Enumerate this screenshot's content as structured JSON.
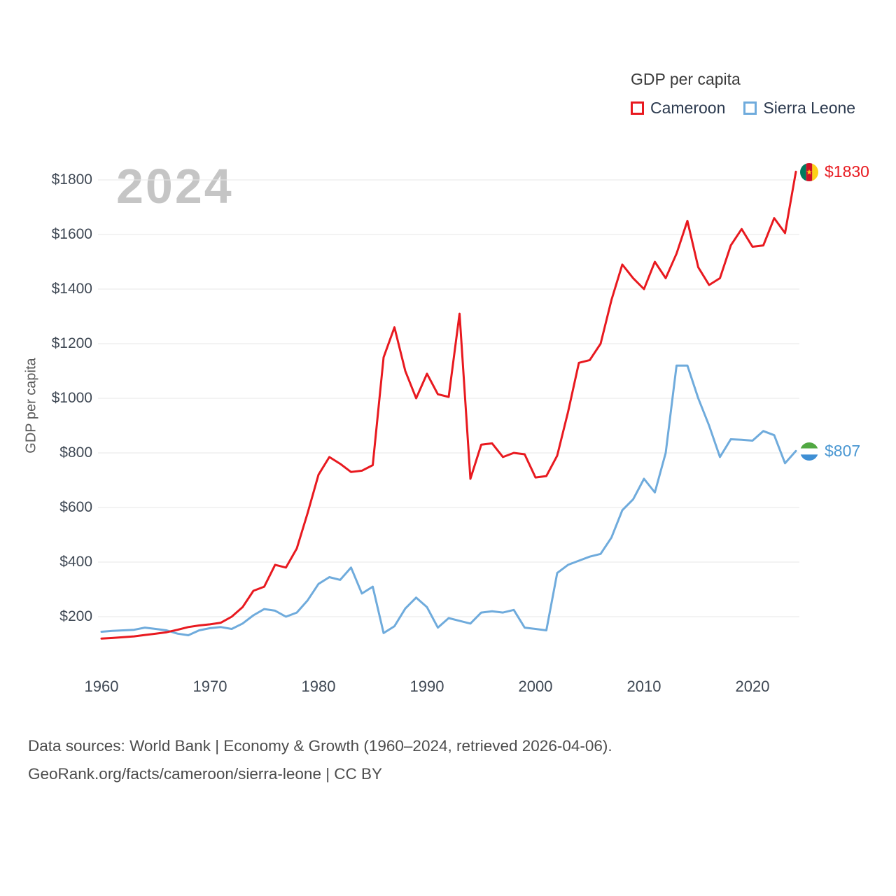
{
  "watermark": "2024",
  "y_axis_title": "GDP per capita",
  "legend": {
    "title": "GDP per capita",
    "items": [
      {
        "label": "Cameroon",
        "color": "#e8191f"
      },
      {
        "label": "Sierra Leone",
        "color": "#6fabdc"
      }
    ]
  },
  "end_labels": [
    {
      "series": "Cameroon",
      "value": "$1830",
      "color": "#e8191f",
      "flag": "cameroon-flag"
    },
    {
      "series": "Sierra Leone",
      "value": "$807",
      "color": "#4a97d2",
      "flag": "sierra-leone-flag"
    }
  ],
  "footer": {
    "line1": "Data sources: World Bank | Economy & Growth (1960–2024, retrieved 2026-04-06).",
    "line2": "GeoRank.org/facts/cameroon/sierra-leone | CC BY"
  },
  "chart_data": {
    "type": "line",
    "title": "GDP per capita",
    "xlabel": "",
    "ylabel": "GDP per capita",
    "x_range": [
      1960,
      2024
    ],
    "x_frequency": "annual",
    "ylim": [
      100,
      1900
    ],
    "grid": true,
    "legend_position": "top-right",
    "x_ticks": [
      {
        "v": 1960,
        "label": "1960"
      },
      {
        "v": 1970,
        "label": "1970"
      },
      {
        "v": 1980,
        "label": "1980"
      },
      {
        "v": 1990,
        "label": "1990"
      },
      {
        "v": 2000,
        "label": "2000"
      },
      {
        "v": 2010,
        "label": "2010"
      },
      {
        "v": 2020,
        "label": "2020"
      }
    ],
    "y_ticks": [
      {
        "v": 200,
        "label": "$200"
      },
      {
        "v": 400,
        "label": "$400"
      },
      {
        "v": 600,
        "label": "$600"
      },
      {
        "v": 800,
        "label": "$800"
      },
      {
        "v": 1000,
        "label": "$1000"
      },
      {
        "v": 1200,
        "label": "$1200"
      },
      {
        "v": 1400,
        "label": "$1400"
      },
      {
        "v": 1600,
        "label": "$1600"
      },
      {
        "v": 1800,
        "label": "$1800"
      }
    ],
    "series": [
      {
        "name": "Cameroon",
        "color": "#e8191f",
        "end_label": "$1830",
        "values": [
          120,
          122,
          125,
          128,
          133,
          138,
          143,
          152,
          162,
          168,
          172,
          178,
          200,
          235,
          295,
          310,
          390,
          380,
          450,
          580,
          720,
          785,
          760,
          730,
          735,
          755,
          1150,
          1260,
          1100,
          1000,
          1090,
          1015,
          1005,
          1310,
          705,
          830,
          835,
          785,
          800,
          795,
          710,
          715,
          790,
          950,
          1130,
          1140,
          1200,
          1360,
          1490,
          1440,
          1400,
          1500,
          1440,
          1530,
          1650,
          1480,
          1415,
          1440,
          1560,
          1620,
          1555,
          1560,
          1660,
          1605,
          1830
        ]
      },
      {
        "name": "Sierra Leone",
        "color": "#6fabdc",
        "end_label": "$807",
        "values": [
          145,
          148,
          150,
          152,
          160,
          155,
          150,
          138,
          132,
          150,
          158,
          162,
          155,
          175,
          205,
          228,
          222,
          200,
          215,
          260,
          320,
          345,
          335,
          380,
          285,
          310,
          140,
          165,
          230,
          270,
          235,
          160,
          195,
          185,
          175,
          215,
          220,
          215,
          225,
          160,
          155,
          150,
          360,
          390,
          405,
          420,
          430,
          490,
          590,
          630,
          705,
          655,
          800,
          1120,
          1120,
          1000,
          900,
          785,
          850,
          848,
          845,
          880,
          865,
          762,
          807
        ]
      }
    ]
  }
}
